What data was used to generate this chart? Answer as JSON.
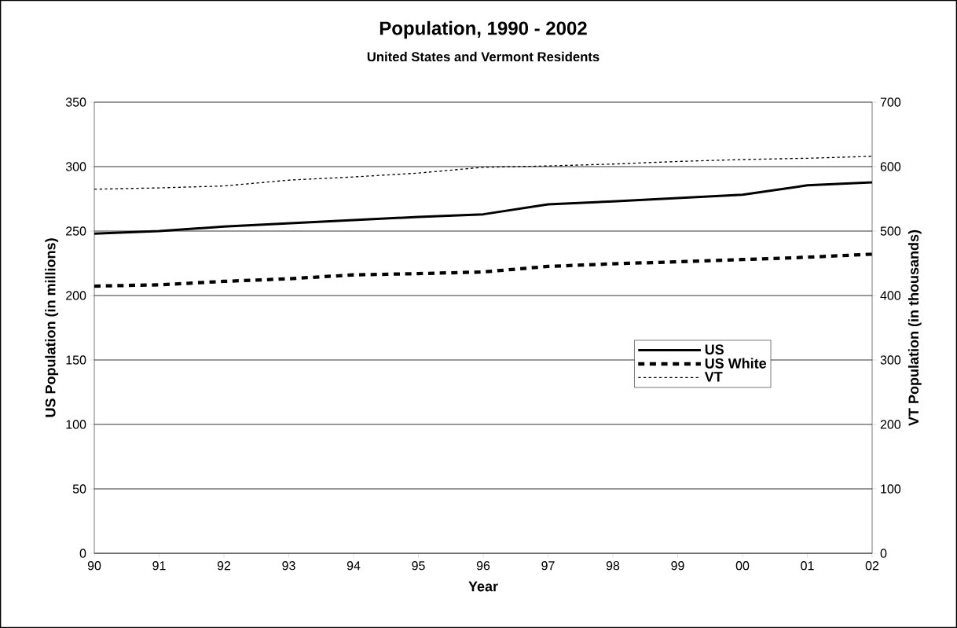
{
  "chart_data": {
    "type": "line",
    "title": "Population, 1990 - 2002",
    "subtitle": "United States and Vermont Residents",
    "xlabel": "Year",
    "ylabel": "US Population (in millions)",
    "y2label": "VT Population (in thousands)",
    "categories": [
      "90",
      "91",
      "92",
      "93",
      "94",
      "95",
      "96",
      "97",
      "98",
      "99",
      "00",
      "01",
      "02"
    ],
    "series": [
      {
        "name": "US",
        "color": "#000000",
        "line_style": "solid",
        "values": [
          248,
          250,
          253.5,
          256,
          258.5,
          261,
          263,
          270.7,
          273,
          275.6,
          278.2,
          285.5,
          287.8
        ]
      },
      {
        "name": "US White",
        "color": "#000000",
        "line_style": "dashed",
        "values": [
          207.3,
          208.3,
          211,
          213,
          216,
          217,
          218.3,
          222.6,
          224.6,
          226.2,
          227.9,
          229.7,
          232.1
        ]
      },
      {
        "name": "VT",
        "color": "#000000",
        "line_style": "dotted",
        "axis": "y2",
        "values": [
          565,
          567,
          570,
          579,
          584,
          590,
          599,
          601,
          604,
          608,
          611,
          613,
          616
        ]
      }
    ],
    "ylim": [
      0,
      350
    ],
    "yticks": [
      0,
      50,
      100,
      150,
      200,
      250,
      300,
      350
    ],
    "y2lim": [
      0,
      700
    ],
    "y2ticks": [
      0,
      100,
      200,
      300,
      400,
      500,
      600,
      700
    ],
    "grid": "y",
    "legend": "right",
    "marker": "none"
  }
}
